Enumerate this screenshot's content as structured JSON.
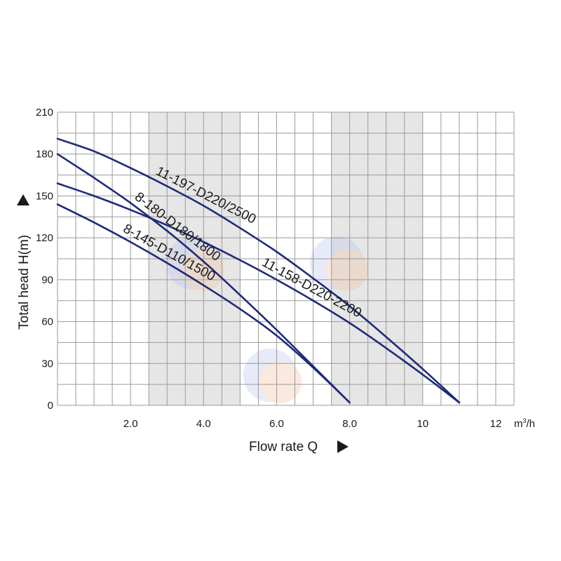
{
  "chart_data": {
    "type": "line",
    "xlabel": "Flow rate Q",
    "ylabel": "Total head H(m)",
    "x_unit_base": "m",
    "x_unit_sup": "3",
    "x_unit_tail": "/h",
    "xlim": [
      0,
      12.5
    ],
    "ylim": [
      0,
      210
    ],
    "x_ticks": [
      {
        "value": 2,
        "label": "2.0"
      },
      {
        "value": 4,
        "label": "4.0"
      },
      {
        "value": 6,
        "label": "6.0"
      },
      {
        "value": 8,
        "label": "8.0"
      },
      {
        "value": 10,
        "label": "10"
      },
      {
        "value": 12,
        "label": "12"
      }
    ],
    "y_ticks": [
      {
        "value": 0,
        "label": "0"
      },
      {
        "value": 30,
        "label": "30"
      },
      {
        "value": 60,
        "label": "60"
      },
      {
        "value": 90,
        "label": "90"
      },
      {
        "value": 120,
        "label": "120"
      },
      {
        "value": 150,
        "label": "150"
      },
      {
        "value": 180,
        "label": "180"
      },
      {
        "value": 210,
        "label": "210"
      }
    ],
    "grid": true,
    "x_grid_step": 0.5,
    "y_grid_step": 15,
    "shaded_x_ranges": [
      [
        2.5,
        5.0
      ],
      [
        7.5,
        10.0
      ]
    ],
    "line_color": "#1f2a7a",
    "series": [
      {
        "name": "11-197-D220/2500",
        "x": [
          0,
          1,
          2,
          3,
          4,
          5,
          6,
          7,
          8,
          9,
          10,
          11
        ],
        "y": [
          191,
          182,
          170,
          157,
          143,
          127,
          110,
          91,
          71,
          49,
          26,
          2
        ]
      },
      {
        "name": "8-180-D180/1800",
        "x": [
          0,
          1,
          2,
          3,
          4,
          5,
          6,
          7,
          8
        ],
        "y": [
          180,
          163,
          145,
          125,
          103,
          79,
          54,
          28,
          2
        ]
      },
      {
        "name": "11-158-D220-2200",
        "x": [
          0,
          1,
          2,
          3,
          4,
          5,
          6,
          7,
          8,
          9,
          10,
          11
        ],
        "y": [
          159,
          150,
          140,
          129,
          117,
          104,
          90,
          75,
          59,
          41,
          22,
          2
        ]
      },
      {
        "name": "8-145-D110/1500",
        "x": [
          0,
          1,
          2,
          3,
          4,
          5,
          6,
          7,
          8
        ],
        "y": [
          144,
          131,
          117,
          102,
          86,
          69,
          50,
          27,
          2
        ]
      }
    ]
  }
}
